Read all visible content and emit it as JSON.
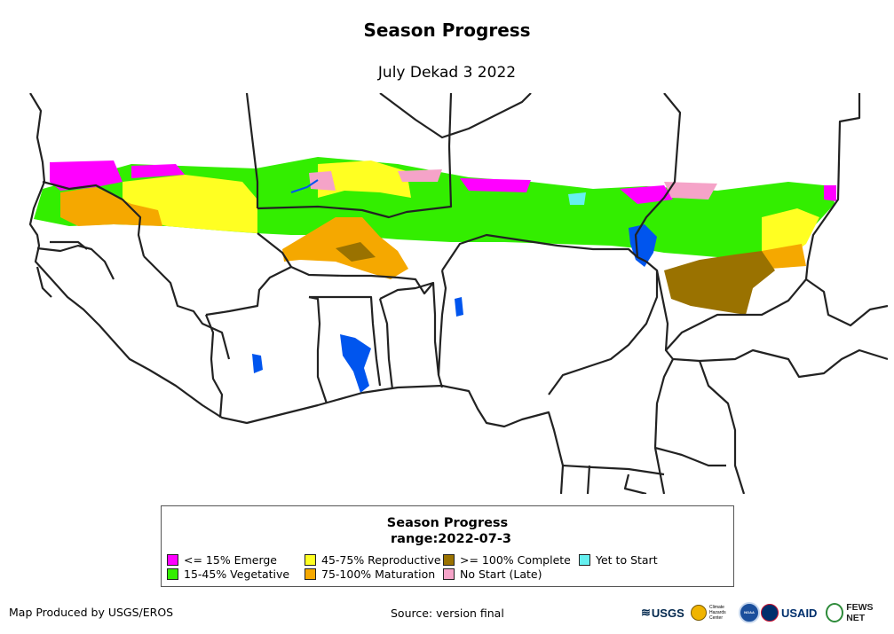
{
  "header": {
    "title": "Season Progress",
    "subtitle": "July Dekad 3 2022"
  },
  "legend": {
    "title": "Season Progress",
    "range": "range:2022-07-3",
    "items": [
      {
        "label": "<= 15% Emerge",
        "color": "#ff00ff"
      },
      {
        "label": "15-45% Vegetative",
        "color": "#33ee00"
      },
      {
        "label": "45-75% Reproductive",
        "color": "#ffff22"
      },
      {
        "label": "75-100% Maturation",
        "color": "#f5a800"
      },
      {
        "label": ">= 100% Complete",
        "color": "#9a7200"
      },
      {
        "label": "No Start (Late)",
        "color": "#f5a3c8"
      },
      {
        "label": "Yet to Start",
        "color": "#66f0f0"
      }
    ]
  },
  "colors": {
    "water": "#0055ee",
    "border": "#222222"
  },
  "footer": {
    "producer": "Map Produced by USGS/EROS",
    "source": "Source: version final"
  },
  "logos": {
    "usgs": "USGS",
    "chc": "Climate Hazards Center",
    "noaa": "NOAA",
    "usaid": "USAID",
    "fews": "FEWS NET"
  }
}
